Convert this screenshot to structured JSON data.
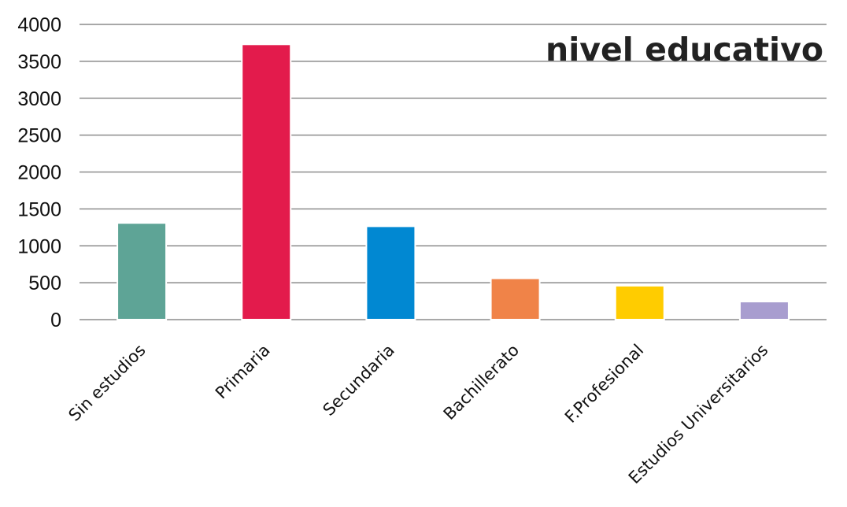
{
  "chart_data": {
    "type": "bar",
    "title": "nivel educativo",
    "categories": [
      "Sin estudios",
      "Primaria",
      "Secundaria",
      "Bachillerato",
      "F.Profesional",
      "Estudios Universitarios"
    ],
    "values": [
      1310,
      3730,
      1265,
      560,
      460,
      245
    ],
    "colors": [
      "#5ea496",
      "#e31b4c",
      "#0188d2",
      "#f08348",
      "#ffcc00",
      "#a89dcf"
    ],
    "ylim": [
      0,
      4000
    ],
    "yticks": [
      "0",
      "500",
      "1000",
      "1500",
      "2000",
      "2500",
      "3000",
      "3500",
      "4000"
    ],
    "grid": true,
    "legend": "none",
    "xlabel": "",
    "ylabel": ""
  }
}
